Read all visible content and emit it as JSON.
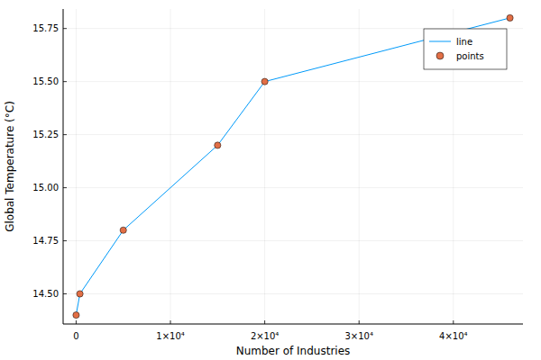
{
  "chart_data": {
    "type": "line",
    "x_label": "Number of Industries",
    "y_label": "Global Temperature (°C)",
    "x": [
      0,
      400,
      5000,
      15000,
      20000,
      46000
    ],
    "series": [
      {
        "name": "line",
        "type": "line",
        "color": "#009af9",
        "line_style": "solid",
        "values": [
          14.4,
          14.5,
          14.8,
          15.2,
          15.5,
          15.8
        ]
      },
      {
        "name": "points",
        "type": "scatter",
        "color": "#e26f46",
        "marker": "circle",
        "values": [
          14.4,
          14.5,
          14.8,
          15.2,
          15.5,
          15.8
        ]
      }
    ],
    "xlim": [
      -1380,
      47380
    ],
    "ylim": [
      14.358,
      15.842
    ],
    "xticks": [
      0,
      {
        "value": 10000,
        "label": "1×10⁴"
      },
      {
        "value": 20000,
        "label": "2×10⁴"
      },
      {
        "value": 30000,
        "label": "3×10⁴"
      },
      {
        "value": 40000,
        "label": "4×10⁴"
      }
    ],
    "yticks": [
      {
        "value": 14.5,
        "label": "14.50"
      },
      {
        "value": 14.75,
        "label": "14.75"
      },
      {
        "value": 15,
        "label": "15.00"
      },
      {
        "value": 15.25,
        "label": "15.25"
      },
      {
        "value": 15.5,
        "label": "15.50"
      },
      {
        "value": 15.75,
        "label": "15.75"
      }
    ],
    "grid": true,
    "legend": "top-right"
  }
}
